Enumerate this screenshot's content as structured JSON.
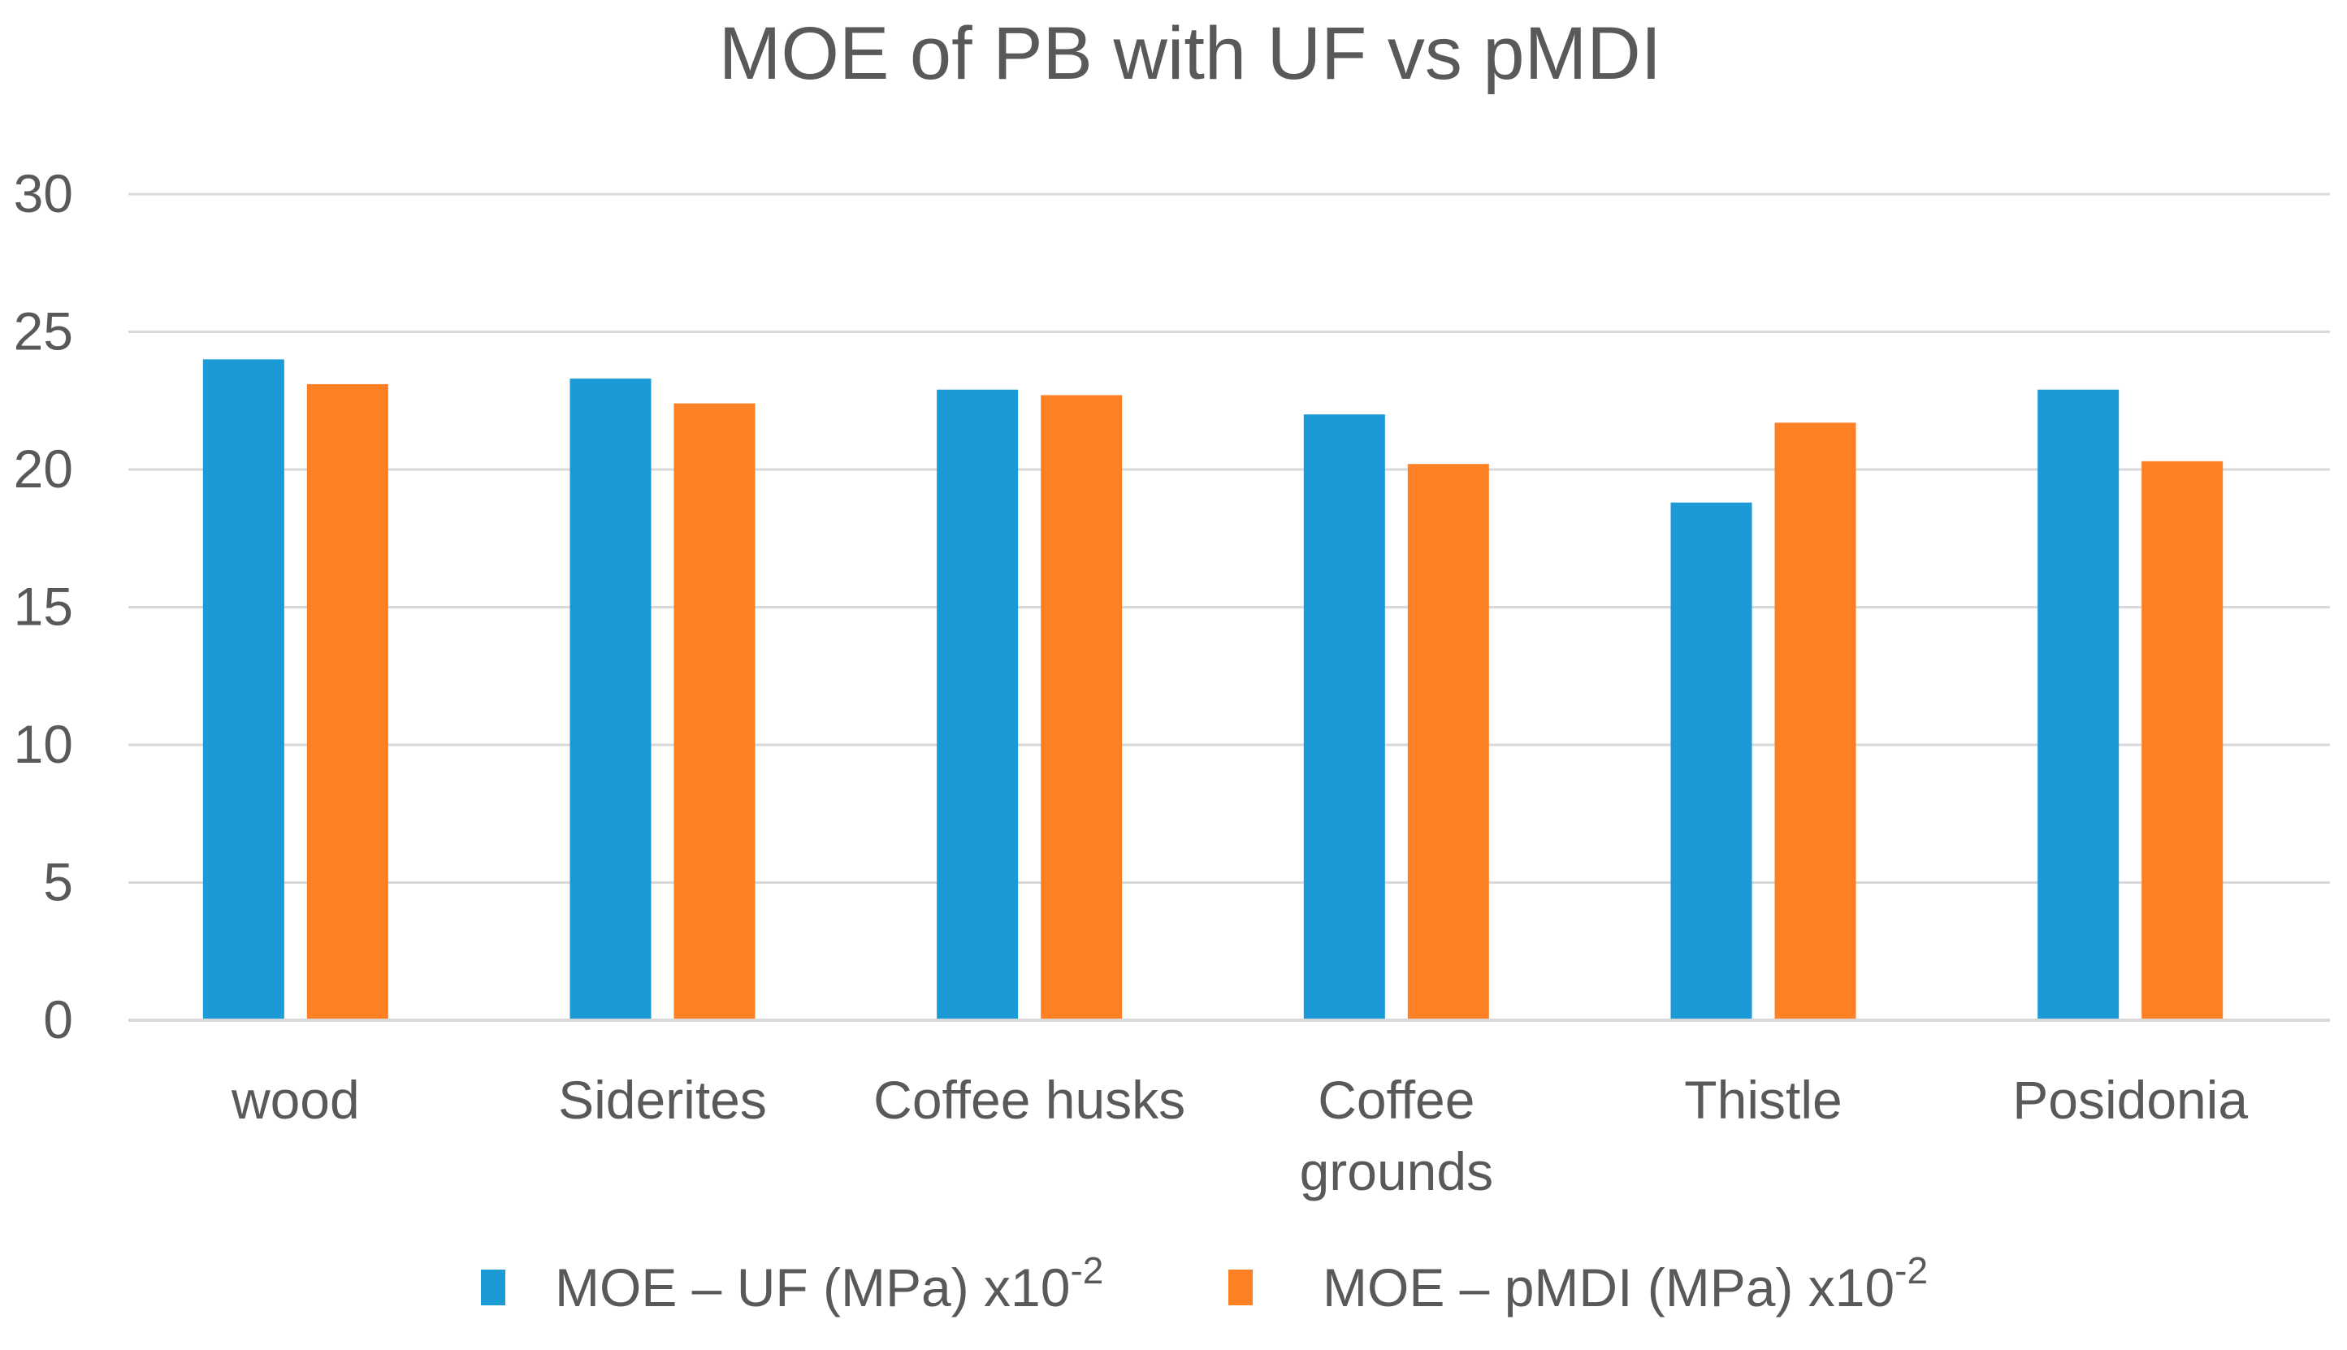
{
  "chart_data": {
    "type": "bar",
    "title": "MOE of PB with UF vs pMDI",
    "xlabel": "",
    "ylabel": "",
    "ylim": [
      0,
      30
    ],
    "yticks": [
      0,
      5,
      10,
      15,
      20,
      25,
      30
    ],
    "grid": true,
    "legend_position": "bottom",
    "categories": [
      [
        "wood"
      ],
      [
        "Siderites"
      ],
      [
        "Coffee husks"
      ],
      [
        "Coffee",
        "grounds"
      ],
      [
        "Thistle"
      ],
      [
        "Posidonia"
      ]
    ],
    "series": [
      {
        "name": "MOE – UF (MPa) x10",
        "name_sup": "-2",
        "color": "#1B9AD6",
        "values": [
          24.0,
          23.3,
          22.9,
          22.0,
          18.8,
          22.9
        ]
      },
      {
        "name": "MOE – pMDI (MPa) x10",
        "name_sup": "-2",
        "color": "#FE8025",
        "values": [
          23.1,
          22.4,
          22.7,
          20.2,
          21.7,
          20.3
        ]
      }
    ]
  }
}
